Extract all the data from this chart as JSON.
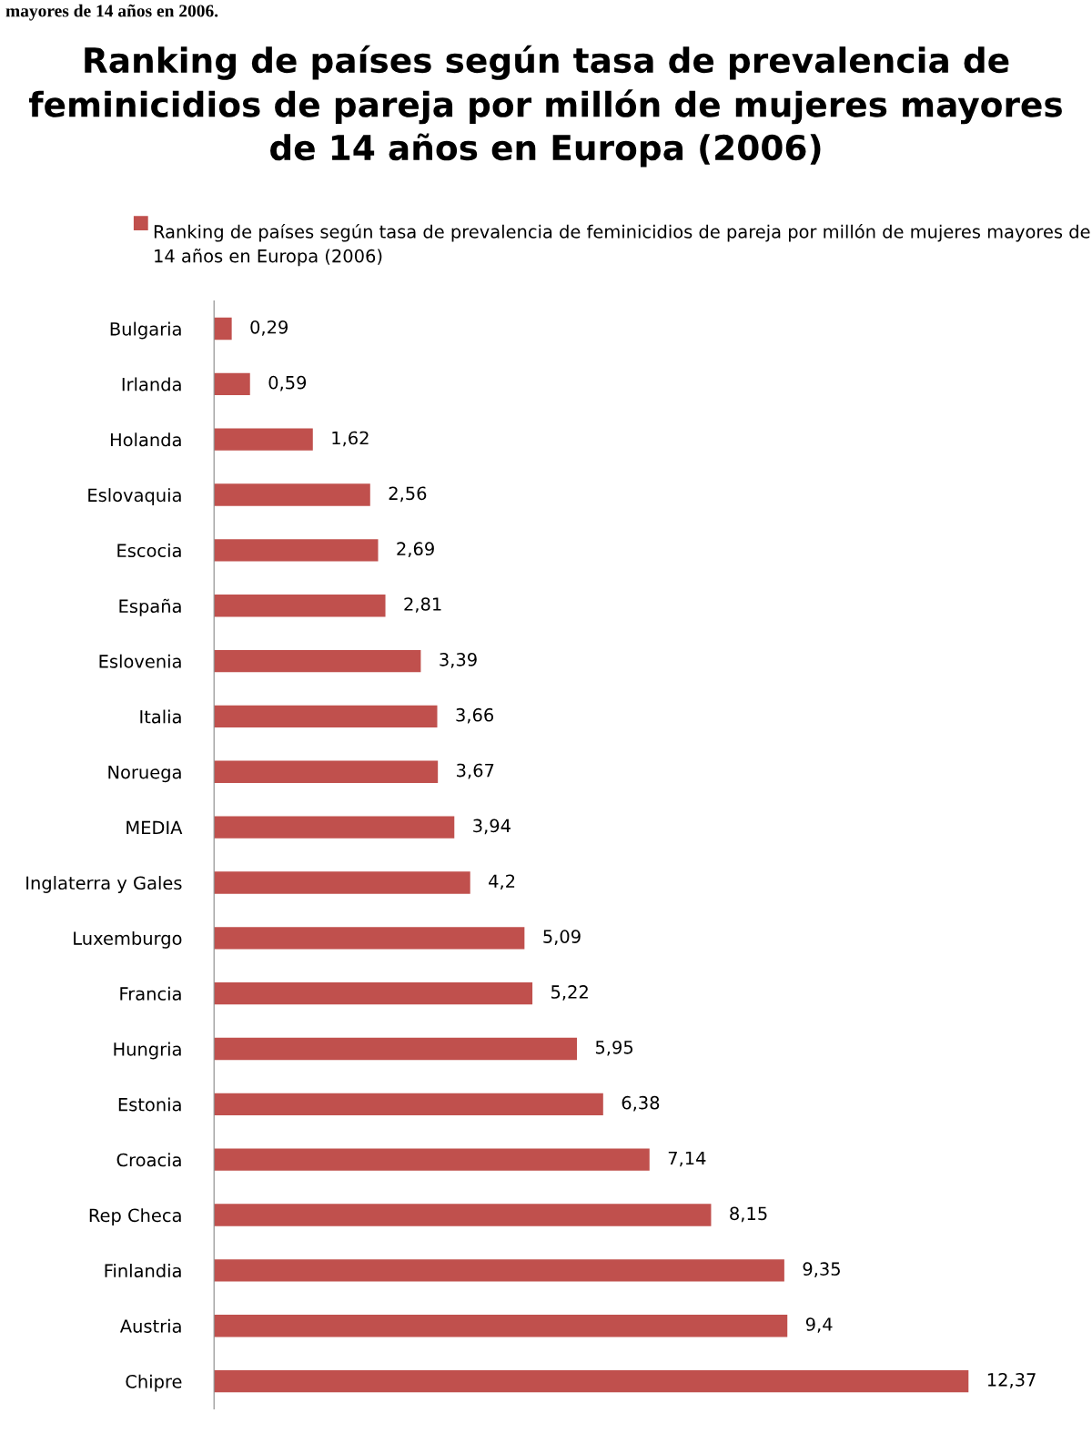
{
  "chart_data": {
    "type": "bar",
    "orientation": "horizontal",
    "title": "Ranking de países según tasa de prevalencia de feminicidios de pareja por millón de mujeres mayores de 14 años en Europa (2006)",
    "annotations": [
      "mayores de 14 años en 2006."
    ],
    "categories": [
      "Bulgaria",
      "Irlanda",
      "Holanda",
      "Eslovaquia",
      "Escocia",
      "España",
      "Eslovenia",
      "Italia",
      "Noruega",
      "MEDIA",
      "Inglaterra y Gales",
      "Luxemburgo",
      "Francia",
      "Hungria",
      "Estonia",
      "Croacia",
      "Rep Checa",
      "Finlandia",
      "Austria",
      "Chipre"
    ],
    "series": [
      {
        "name": "Ranking de países según tasa de prevalencia de feminicidios de pareja por millón de mujeres mayores de 14 años en Europa (2006)",
        "color": "#c0504d",
        "values": [
          0.29,
          0.59,
          1.62,
          2.56,
          2.69,
          2.81,
          3.39,
          3.66,
          3.67,
          3.94,
          4.2,
          5.09,
          5.22,
          5.95,
          6.38,
          7.14,
          8.15,
          9.35,
          9.4,
          12.37
        ],
        "value_labels": [
          "0,29",
          "0,59",
          "1,62",
          "2,56",
          "2,69",
          "2,81",
          "3,39",
          "3,66",
          "3,67",
          "3,94",
          "4,2",
          "5,09",
          "5,22",
          "5,95",
          "6,38",
          "7,14",
          "8,15",
          "9,35",
          "9,4",
          "12,37"
        ]
      }
    ],
    "legend": "top",
    "grid": false,
    "tick_labels": "y"
  }
}
